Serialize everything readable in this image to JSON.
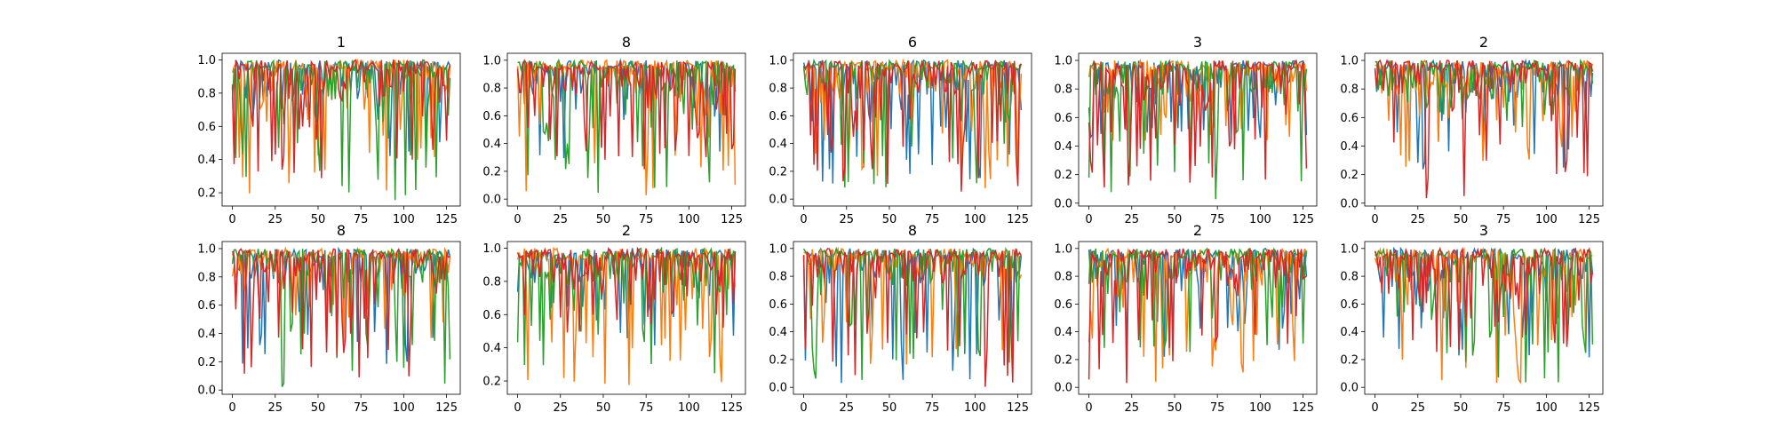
{
  "chart_data": [
    {
      "type": "line",
      "title": "1",
      "ylim": [
        0.12,
        1.04
      ],
      "yticks": [
        0.2,
        0.4,
        0.6,
        0.8,
        1.0
      ],
      "xlim": [
        -6,
        133
      ],
      "xticks": [
        0,
        25,
        50,
        75,
        100,
        125
      ],
      "series": [
        {
          "color": "#1f77b4",
          "min": 0.4
        },
        {
          "color": "#ff7f0e",
          "min": 0.18
        },
        {
          "color": "#2ca02c",
          "min": 0.12
        },
        {
          "color": "#d62728",
          "min": 0.25
        }
      ]
    },
    {
      "type": "line",
      "title": "8",
      "ylim": [
        -0.05,
        1.05
      ],
      "yticks": [
        0.0,
        0.2,
        0.4,
        0.6,
        0.8,
        1.0
      ],
      "xlim": [
        -6,
        133
      ],
      "xticks": [
        0,
        25,
        50,
        75,
        100,
        125
      ],
      "series": [
        {
          "color": "#1f77b4",
          "min": 0.2
        },
        {
          "color": "#ff7f0e",
          "min": 0.02
        },
        {
          "color": "#2ca02c",
          "min": 0.0
        },
        {
          "color": "#d62728",
          "min": 0.2
        }
      ]
    },
    {
      "type": "line",
      "title": "6",
      "ylim": [
        -0.05,
        1.05
      ],
      "yticks": [
        0.0,
        0.2,
        0.4,
        0.6,
        0.8,
        1.0
      ],
      "xlim": [
        -6,
        133
      ],
      "xticks": [
        0,
        25,
        50,
        75,
        100,
        125
      ],
      "series": [
        {
          "color": "#1f77b4",
          "min": 0.1
        },
        {
          "color": "#ff7f0e",
          "min": 0.05
        },
        {
          "color": "#2ca02c",
          "min": 0.0
        },
        {
          "color": "#d62728",
          "min": 0.05
        }
      ]
    },
    {
      "type": "line",
      "title": "3",
      "ylim": [
        -0.02,
        1.05
      ],
      "yticks": [
        0.0,
        0.2,
        0.4,
        0.6,
        0.8,
        1.0
      ],
      "xlim": [
        -6,
        133
      ],
      "xticks": [
        0,
        25,
        50,
        75,
        100,
        125
      ],
      "series": [
        {
          "color": "#1f77b4",
          "min": 0.4
        },
        {
          "color": "#ff7f0e",
          "min": 0.4
        },
        {
          "color": "#2ca02c",
          "min": 0.02
        },
        {
          "color": "#d62728",
          "min": 0.1
        }
      ]
    },
    {
      "type": "line",
      "title": "2",
      "ylim": [
        -0.02,
        1.05
      ],
      "yticks": [
        0.0,
        0.2,
        0.4,
        0.6,
        0.8,
        1.0
      ],
      "xlim": [
        -6,
        133
      ],
      "xticks": [
        0,
        25,
        50,
        75,
        100,
        125
      ],
      "series": [
        {
          "color": "#1f77b4",
          "min": 0.2
        },
        {
          "color": "#ff7f0e",
          "min": 0.25
        },
        {
          "color": "#2ca02c",
          "min": 0.5
        },
        {
          "color": "#d62728",
          "min": 0.03
        }
      ]
    },
    {
      "type": "line",
      "title": "8",
      "ylim": [
        -0.03,
        1.05
      ],
      "yticks": [
        0.0,
        0.2,
        0.4,
        0.6,
        0.8,
        1.0
      ],
      "xlim": [
        -6,
        133
      ],
      "xticks": [
        0,
        25,
        50,
        75,
        100,
        125
      ],
      "series": [
        {
          "color": "#1f77b4",
          "min": 0.18
        },
        {
          "color": "#ff7f0e",
          "min": 0.3
        },
        {
          "color": "#2ca02c",
          "min": 0.02
        },
        {
          "color": "#d62728",
          "min": 0.05
        }
      ]
    },
    {
      "type": "line",
      "title": "2",
      "ylim": [
        0.12,
        1.04
      ],
      "yticks": [
        0.2,
        0.4,
        0.6,
        0.8,
        1.0
      ],
      "xlim": [
        -6,
        133
      ],
      "xticks": [
        0,
        25,
        50,
        75,
        100,
        125
      ],
      "series": [
        {
          "color": "#1f77b4",
          "min": 0.4
        },
        {
          "color": "#ff7f0e",
          "min": 0.17
        },
        {
          "color": "#2ca02c",
          "min": 0.22
        },
        {
          "color": "#d62728",
          "min": 0.48
        }
      ]
    },
    {
      "type": "line",
      "title": "8",
      "ylim": [
        -0.05,
        1.05
      ],
      "yticks": [
        0.0,
        0.2,
        0.4,
        0.6,
        0.8,
        1.0
      ],
      "xlim": [
        -6,
        133
      ],
      "xticks": [
        0,
        25,
        50,
        75,
        100,
        125
      ],
      "series": [
        {
          "color": "#1f77b4",
          "min": 0.03
        },
        {
          "color": "#ff7f0e",
          "min": 0.12
        },
        {
          "color": "#2ca02c",
          "min": 0.05
        },
        {
          "color": "#d62728",
          "min": 0.0
        }
      ]
    },
    {
      "type": "line",
      "title": "2",
      "ylim": [
        -0.05,
        1.05
      ],
      "yticks": [
        0.0,
        0.2,
        0.4,
        0.6,
        0.8,
        1.0
      ],
      "xlim": [
        -6,
        133
      ],
      "xticks": [
        0,
        25,
        50,
        75,
        100,
        125
      ],
      "series": [
        {
          "color": "#1f77b4",
          "min": 0.15
        },
        {
          "color": "#ff7f0e",
          "min": 0.0
        },
        {
          "color": "#2ca02c",
          "min": 0.2
        },
        {
          "color": "#d62728",
          "min": 0.02
        }
      ]
    },
    {
      "type": "line",
      "title": "3",
      "ylim": [
        -0.05,
        1.05
      ],
      "yticks": [
        0.0,
        0.2,
        0.4,
        0.6,
        0.8,
        1.0
      ],
      "xlim": [
        -6,
        133
      ],
      "xticks": [
        0,
        25,
        50,
        75,
        100,
        125
      ],
      "series": [
        {
          "color": "#1f77b4",
          "min": 0.2
        },
        {
          "color": "#ff7f0e",
          "min": 0.03
        },
        {
          "color": "#2ca02c",
          "min": 0.0
        },
        {
          "color": "#d62728",
          "min": 0.25
        }
      ]
    }
  ]
}
